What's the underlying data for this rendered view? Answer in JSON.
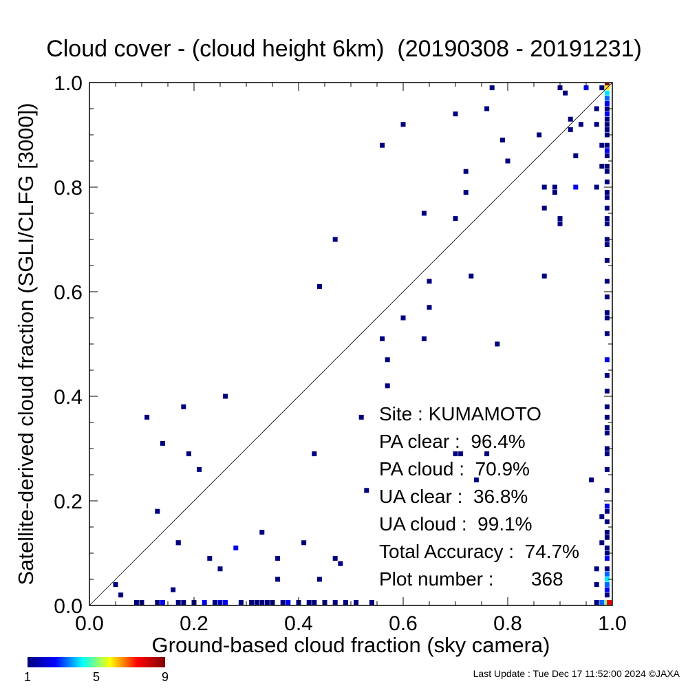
{
  "chart_data": {
    "type": "scatter",
    "title": "Cloud cover - (cloud height 6km)  (20190308 - 20191231)",
    "xlabel": "Ground-based cloud fraction (sky camera)",
    "ylabel": "Satellite-derived cloud fraction (SGLI/CLFG [3000])",
    "xlim": [
      0.0,
      1.0
    ],
    "ylim": [
      0.0,
      1.0
    ],
    "x_ticks": [
      "0.0",
      "0.2",
      "0.4",
      "0.6",
      "0.8",
      "1.0"
    ],
    "y_ticks": [
      "0.0",
      "0.2",
      "0.4",
      "0.6",
      "0.8",
      "1.0"
    ],
    "grid": false,
    "reference_line": "1:1 diagonal",
    "colorbar": {
      "min": 1,
      "max": 9,
      "ticks": [
        "1",
        "5",
        "9"
      ],
      "colormap": "rainbow"
    },
    "points": [
      [
        0.05,
        0.04,
        1
      ],
      [
        0.06,
        0.02,
        1
      ],
      [
        0.11,
        0.36,
        1
      ],
      [
        0.13,
        0.18,
        1
      ],
      [
        0.14,
        0.31,
        1
      ],
      [
        0.16,
        0.03,
        1
      ],
      [
        0.17,
        0.12,
        1
      ],
      [
        0.17,
        0.12,
        1
      ],
      [
        0.18,
        0.38,
        1
      ],
      [
        0.19,
        0.29,
        1
      ],
      [
        0.21,
        0.26,
        1
      ],
      [
        0.23,
        0.09,
        1
      ],
      [
        0.25,
        0.07,
        1
      ],
      [
        0.26,
        0.4,
        1
      ],
      [
        0.28,
        0.11,
        2
      ],
      [
        0.33,
        0.14,
        1
      ],
      [
        0.36,
        0.09,
        1
      ],
      [
        0.36,
        0.05,
        1
      ],
      [
        0.41,
        0.12,
        1
      ],
      [
        0.43,
        0.29,
        1
      ],
      [
        0.44,
        0.61,
        1
      ],
      [
        0.44,
        0.05,
        1
      ],
      [
        0.47,
        0.7,
        1
      ],
      [
        0.47,
        0.09,
        1
      ],
      [
        0.48,
        0.08,
        1
      ],
      [
        0.52,
        0.36,
        1
      ],
      [
        0.53,
        0.22,
        1
      ],
      [
        0.56,
        0.88,
        1
      ],
      [
        0.56,
        0.51,
        1
      ],
      [
        0.57,
        0.47,
        1
      ],
      [
        0.57,
        0.42,
        1
      ],
      [
        0.6,
        0.92,
        1
      ],
      [
        0.6,
        0.55,
        1
      ],
      [
        0.64,
        0.75,
        1
      ],
      [
        0.64,
        0.51,
        1
      ],
      [
        0.65,
        0.62,
        1
      ],
      [
        0.65,
        0.57,
        1
      ],
      [
        0.7,
        0.94,
        1
      ],
      [
        0.7,
        0.74,
        1
      ],
      [
        0.7,
        0.29,
        1
      ],
      [
        0.71,
        0.29,
        1
      ],
      [
        0.72,
        0.83,
        1
      ],
      [
        0.72,
        0.79,
        1
      ],
      [
        0.73,
        0.63,
        1
      ],
      [
        0.74,
        0.24,
        1
      ],
      [
        0.76,
        0.95,
        1
      ],
      [
        0.76,
        0.29,
        1
      ],
      [
        0.77,
        0.99,
        1
      ],
      [
        0.78,
        0.5,
        1
      ],
      [
        0.79,
        0.89,
        1
      ],
      [
        0.8,
        0.85,
        1
      ],
      [
        0.86,
        0.9,
        1
      ],
      [
        0.87,
        0.8,
        1
      ],
      [
        0.87,
        0.76,
        1
      ],
      [
        0.87,
        0.63,
        1
      ],
      [
        0.89,
        0.8,
        1
      ],
      [
        0.89,
        0.79,
        1
      ],
      [
        0.9,
        0.74,
        1
      ],
      [
        0.9,
        0.73,
        1
      ],
      [
        0.9,
        0.99,
        1
      ],
      [
        0.91,
        0.98,
        1
      ],
      [
        0.92,
        0.93,
        1
      ],
      [
        0.92,
        0.91,
        1
      ],
      [
        0.93,
        0.86,
        1
      ],
      [
        0.93,
        0.8,
        2
      ],
      [
        0.94,
        0.92,
        1
      ],
      [
        0.95,
        0.99,
        2
      ],
      [
        0.96,
        0.24,
        1
      ],
      [
        0.97,
        0.95,
        1
      ],
      [
        0.97,
        0.92,
        1
      ],
      [
        0.97,
        0.8,
        1
      ],
      [
        0.97,
        0.07,
        1
      ],
      [
        0.97,
        0.04,
        1
      ],
      [
        0.98,
        0.99,
        1
      ],
      [
        0.98,
        0.88,
        1
      ],
      [
        0.98,
        0.84,
        1
      ],
      [
        0.98,
        0.17,
        1
      ],
      [
        0.98,
        0.12,
        1
      ],
      [
        0.09,
        0.0,
        1
      ],
      [
        0.1,
        0.0,
        1
      ],
      [
        0.13,
        0.0,
        1
      ],
      [
        0.14,
        0.0,
        2
      ],
      [
        0.17,
        0.0,
        1
      ],
      [
        0.18,
        0.0,
        1
      ],
      [
        0.2,
        0.0,
        1
      ],
      [
        0.22,
        0.0,
        2
      ],
      [
        0.24,
        0.0,
        1
      ],
      [
        0.25,
        0.0,
        2
      ],
      [
        0.26,
        0.0,
        2
      ],
      [
        0.29,
        0.0,
        1
      ],
      [
        0.31,
        0.0,
        1
      ],
      [
        0.32,
        0.0,
        1
      ],
      [
        0.33,
        0.0,
        1
      ],
      [
        0.34,
        0.0,
        1
      ],
      [
        0.35,
        0.0,
        1
      ],
      [
        0.37,
        0.0,
        1
      ],
      [
        0.38,
        0.0,
        2
      ],
      [
        0.4,
        0.0,
        1
      ],
      [
        0.42,
        0.0,
        1
      ],
      [
        0.43,
        0.0,
        1
      ],
      [
        0.45,
        0.0,
        1
      ],
      [
        0.47,
        0.0,
        1
      ],
      [
        0.49,
        0.0,
        1
      ],
      [
        0.51,
        0.0,
        1
      ],
      [
        0.54,
        0.0,
        1
      ],
      [
        0.97,
        0.0,
        1
      ],
      [
        0.99,
        1.0,
        9
      ],
      [
        0.99,
        0.99,
        6
      ],
      [
        0.99,
        0.98,
        4
      ],
      [
        0.99,
        0.97,
        3
      ],
      [
        0.99,
        0.96,
        2
      ],
      [
        0.99,
        0.95,
        1
      ],
      [
        0.99,
        0.94,
        2
      ],
      [
        0.99,
        0.93,
        1
      ],
      [
        0.99,
        0.92,
        1
      ],
      [
        0.99,
        0.91,
        1
      ],
      [
        0.99,
        0.9,
        1
      ],
      [
        0.99,
        0.88,
        1
      ],
      [
        0.99,
        0.87,
        2
      ],
      [
        0.99,
        0.86,
        1
      ],
      [
        0.99,
        0.84,
        1
      ],
      [
        0.99,
        0.83,
        1
      ],
      [
        0.99,
        0.81,
        1
      ],
      [
        0.99,
        0.79,
        1
      ],
      [
        0.99,
        0.78,
        1
      ],
      [
        0.99,
        0.76,
        1
      ],
      [
        0.99,
        0.74,
        1
      ],
      [
        0.99,
        0.73,
        1
      ],
      [
        0.99,
        0.7,
        1
      ],
      [
        0.99,
        0.69,
        1
      ],
      [
        0.99,
        0.66,
        1
      ],
      [
        0.99,
        0.62,
        1
      ],
      [
        0.99,
        0.59,
        1
      ],
      [
        0.99,
        0.56,
        1
      ],
      [
        0.99,
        0.55,
        1
      ],
      [
        0.99,
        0.52,
        1
      ],
      [
        0.99,
        0.47,
        2
      ],
      [
        0.99,
        0.44,
        1
      ],
      [
        0.99,
        0.41,
        1
      ],
      [
        0.99,
        0.38,
        1
      ],
      [
        0.99,
        0.36,
        1
      ],
      [
        0.99,
        0.34,
        1
      ],
      [
        0.99,
        0.33,
        1
      ],
      [
        0.99,
        0.3,
        1
      ],
      [
        0.99,
        0.29,
        1
      ],
      [
        0.99,
        0.26,
        1
      ],
      [
        0.99,
        0.22,
        1
      ],
      [
        0.99,
        0.19,
        2
      ],
      [
        0.99,
        0.18,
        1
      ],
      [
        0.99,
        0.16,
        1
      ],
      [
        0.99,
        0.14,
        1
      ],
      [
        0.99,
        0.13,
        1
      ],
      [
        0.99,
        0.11,
        1
      ],
      [
        0.99,
        0.1,
        1
      ],
      [
        0.99,
        0.09,
        2
      ],
      [
        0.99,
        0.07,
        1
      ],
      [
        0.99,
        0.06,
        3
      ],
      [
        0.99,
        0.05,
        4
      ],
      [
        0.99,
        0.04,
        3
      ],
      [
        0.99,
        0.03,
        2
      ],
      [
        0.99,
        0.02,
        1
      ],
      [
        0.99,
        0.0,
        5
      ],
      [
        0.98,
        0.0,
        3
      ],
      [
        1.0,
        0.0,
        8
      ]
    ],
    "stats": {
      "site": "Site : KUMAMOTO",
      "pa_clear": "PA clear :  96.4%",
      "pa_cloud": "PA cloud :  70.9%",
      "ua_clear": "UA clear :  36.8%",
      "ua_cloud": "UA cloud :  99.1%",
      "total_accuracy": "Total Accuracy :  74.7%",
      "plot_number": "Plot number :       368"
    }
  },
  "footer": "Last Update : Tue Dec 17 11:52:00 2024  ©JAXA"
}
